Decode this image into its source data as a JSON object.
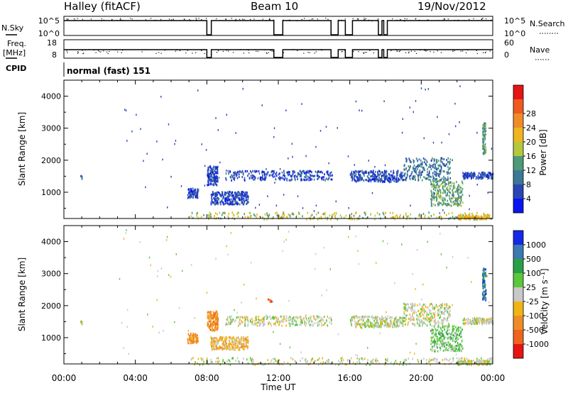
{
  "header": {
    "station": "Halley (fitACF)",
    "beam": "Beam 10",
    "date": "19/Nov/2012"
  },
  "status": {
    "nsky_label": "N.Sky",
    "nsky_ticks": [
      "10^5",
      "10^0"
    ],
    "nsearch_label": "N.Search",
    "nsearch_ticks": [
      "10^5",
      "10^0"
    ],
    "freq_label": "Freq.",
    "freq_unit": "[MHz]",
    "freq_ticks": [
      "18",
      "8"
    ],
    "nave_label": "Nave",
    "nave_ticks": [
      "60",
      "0"
    ],
    "cpid_label": "CPID",
    "cpid_value": "normal (fast) 151",
    "gap_intervals_hours": [
      [
        8.0,
        8.25
      ],
      [
        11.75,
        12.25
      ],
      [
        14.95,
        15.35
      ],
      [
        15.75,
        16.15
      ],
      [
        17.6,
        17.8
      ],
      [
        17.9,
        18.1
      ]
    ]
  },
  "chart_data": [
    {
      "type": "heatmap",
      "panel": "power",
      "ylabel": "Slant Range [km]",
      "ylim": [
        180,
        4500
      ],
      "yticks": [
        "1000",
        "2000",
        "3000",
        "4000"
      ],
      "xlim_hours": [
        0,
        24
      ],
      "colorbar": {
        "label": "Power [dB]",
        "ticks": [
          "4",
          "8",
          "12",
          "16",
          "20",
          "24",
          "28"
        ],
        "colors": [
          "#0a14f0",
          "#2846b4",
          "#3c7896",
          "#4c9a78",
          "#b4c83c",
          "#f0b41e",
          "#f08c28",
          "#f05a1e",
          "#e61414"
        ]
      },
      "clusters": [
        {
          "t": [
            0.9,
            1.0
          ],
          "r": [
            1450,
            1550
          ],
          "level": 1
        },
        {
          "t": [
            6.9,
            7.5
          ],
          "r": [
            850,
            1150
          ],
          "level": 1
        },
        {
          "t": [
            8.0,
            8.6
          ],
          "r": [
            1250,
            1850
          ],
          "level": 1
        },
        {
          "t": [
            8.2,
            10.3
          ],
          "r": [
            650,
            1050
          ],
          "level": 1
        },
        {
          "t": [
            9.0,
            15.0
          ],
          "r": [
            1400,
            1700
          ],
          "level": 1
        },
        {
          "t": [
            16.0,
            19.0
          ],
          "r": [
            1350,
            1700
          ],
          "level": 1
        },
        {
          "t": [
            19.0,
            21.6
          ],
          "r": [
            1400,
            2100
          ],
          "level": 2
        },
        {
          "t": [
            20.5,
            22.3
          ],
          "r": [
            600,
            1400
          ],
          "level": 3
        },
        {
          "t": [
            22.3,
            24.0
          ],
          "r": [
            1450,
            1650
          ],
          "level": 1
        },
        {
          "t": [
            7.0,
            24.0
          ],
          "r": [
            180,
            400
          ],
          "level": 4
        },
        {
          "t": [
            22.0,
            23.8
          ],
          "r": [
            180,
            320
          ],
          "level": 5
        },
        {
          "t": [
            23.4,
            23.6
          ],
          "r": [
            2200,
            3200
          ],
          "level": 3
        }
      ]
    },
    {
      "type": "heatmap",
      "panel": "velocity",
      "ylabel": "Slant Range [km]",
      "xlabel": "Time UT",
      "ylim": [
        180,
        4500
      ],
      "yticks": [
        "1000",
        "2000",
        "3000",
        "4000"
      ],
      "xlim_hours": [
        0,
        24
      ],
      "xticks": [
        "00:00",
        "04:00",
        "08:00",
        "12:00",
        "16:00",
        "20:00",
        "00:00"
      ],
      "colorbar": {
        "label": "Velocity [m s⁻¹]",
        "ticks": [
          "1000",
          "500",
          "100",
          "25",
          "-25",
          "-100",
          "-500",
          "-1000"
        ],
        "colors": [
          "#1428e6",
          "#3c78b4",
          "#28a046",
          "#5ac83c",
          "#c8c8c8",
          "#f0b414",
          "#f08c28",
          "#f0641e",
          "#e61414"
        ]
      },
      "clusters": [
        {
          "t": [
            0.9,
            1.0
          ],
          "r": [
            1450,
            1550
          ],
          "level": 4
        },
        {
          "t": [
            6.9,
            7.5
          ],
          "r": [
            850,
            1150
          ],
          "level": 6
        },
        {
          "t": [
            8.0,
            8.6
          ],
          "r": [
            1250,
            1850
          ],
          "level": 6
        },
        {
          "t": [
            8.2,
            10.3
          ],
          "r": [
            650,
            1050
          ],
          "level": 5
        },
        {
          "t": [
            11.4,
            11.6
          ],
          "r": [
            2150,
            2250
          ],
          "level": 7
        },
        {
          "t": [
            9.0,
            15.0
          ],
          "r": [
            1400,
            1700
          ],
          "level": 4
        },
        {
          "t": [
            16.0,
            19.0
          ],
          "r": [
            1350,
            1700
          ],
          "level": 4
        },
        {
          "t": [
            19.0,
            21.6
          ],
          "r": [
            1400,
            2100
          ],
          "level": 4
        },
        {
          "t": [
            20.5,
            22.3
          ],
          "r": [
            600,
            1400
          ],
          "level": 3
        },
        {
          "t": [
            22.3,
            24.0
          ],
          "r": [
            1450,
            1650
          ],
          "level": 4
        },
        {
          "t": [
            7.0,
            24.0
          ],
          "r": [
            180,
            400
          ],
          "level": 4
        },
        {
          "t": [
            22.0,
            23.8
          ],
          "r": [
            180,
            320
          ],
          "level": 4
        },
        {
          "t": [
            23.4,
            23.6
          ],
          "r": [
            2200,
            3200
          ],
          "level": 1
        }
      ]
    }
  ]
}
